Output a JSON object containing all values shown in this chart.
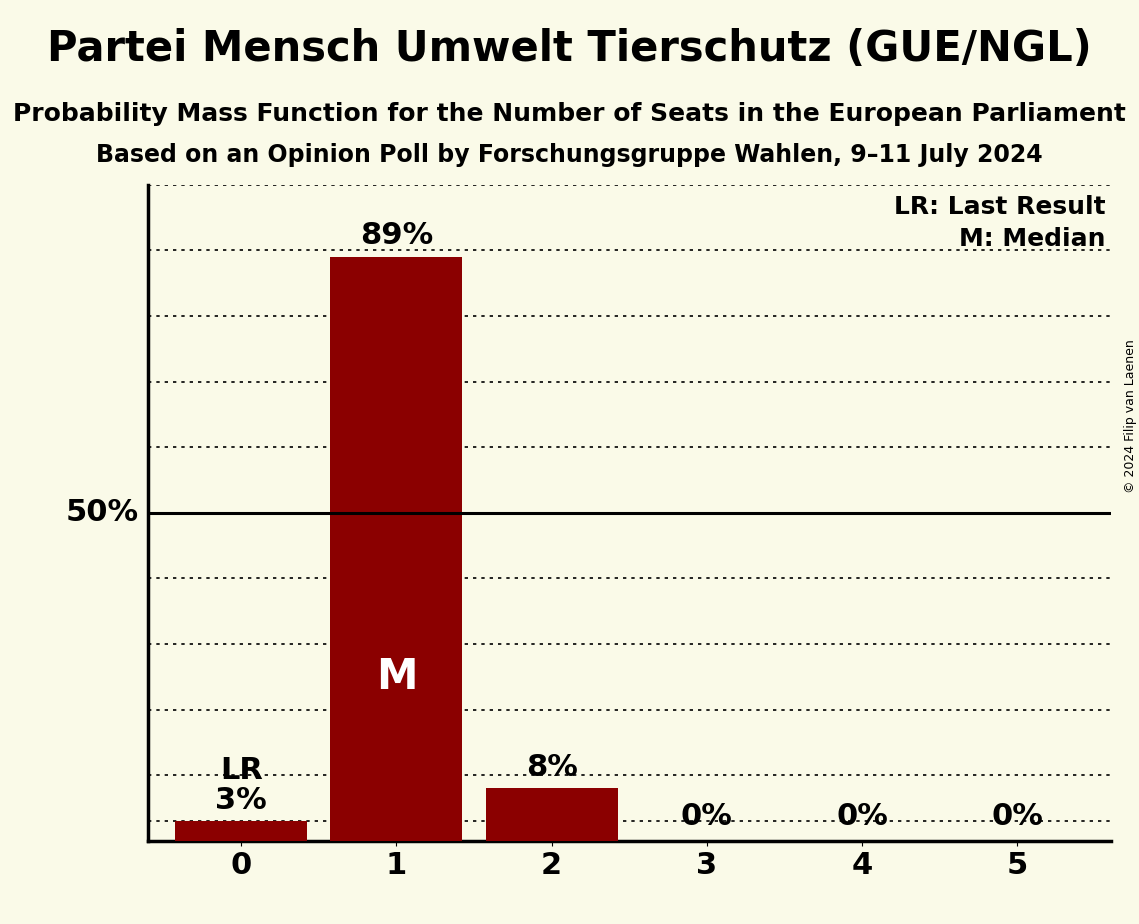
{
  "title": "Partei Mensch Umwelt Tierschutz (GUE/NGL)",
  "subtitle1": "Probability Mass Function for the Number of Seats in the European Parliament",
  "subtitle2": "Based on an Opinion Poll by Forschungsgruppe Wahlen, 9–11 July 2024",
  "copyright": "© 2024 Filip van Laenen",
  "categories": [
    0,
    1,
    2,
    3,
    4,
    5
  ],
  "values": [
    0.03,
    0.89,
    0.08,
    0.0,
    0.0,
    0.0
  ],
  "bar_color": "#8B0000",
  "background_color": "#FAFAE8",
  "bar_labels": [
    "3%",
    "89%",
    "8%",
    "0%",
    "0%",
    "0%"
  ],
  "median_bar": 1,
  "last_result_bar": 0,
  "fifty_pct_line": 0.5,
  "ylim": [
    0,
    1.0
  ],
  "legend_lr": "LR: Last Result",
  "legend_m": "M: Median",
  "title_fontsize": 30,
  "subtitle_fontsize": 18,
  "subtitle2_fontsize": 17,
  "label_fontsize": 22,
  "tick_fontsize": 22,
  "ylabel_fontsize": 22,
  "legend_fontsize": 18,
  "copyright_fontsize": 9,
  "grid_levels": [
    0.1,
    0.2,
    0.3,
    0.4,
    0.6,
    0.7,
    0.8,
    0.9,
    1.0
  ],
  "lr_dotted_level": 0.03
}
